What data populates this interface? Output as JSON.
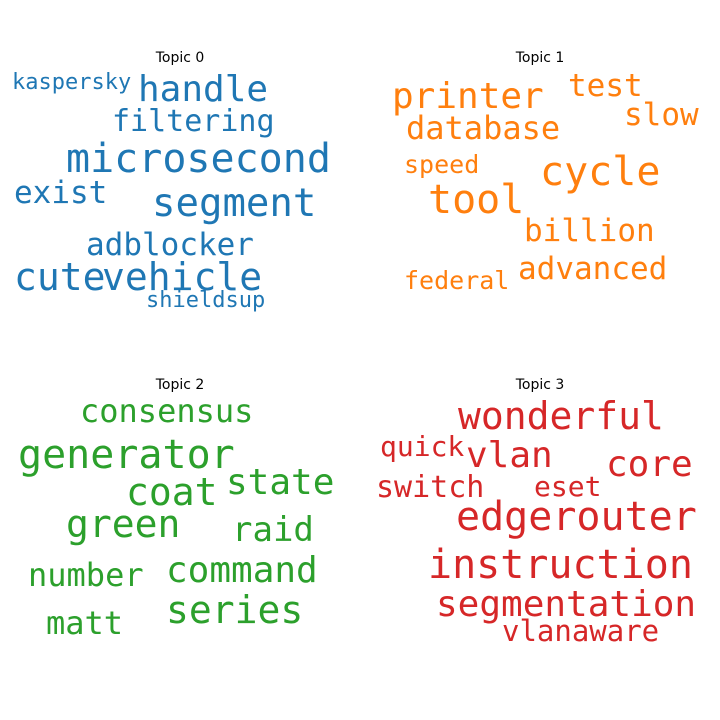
{
  "chart_data": {
    "type": "word-cloud",
    "panels": [
      {
        "title": "Topic 0",
        "color": "#1f77b4",
        "words": [
          {
            "text": "kaspersky"
          },
          {
            "text": "handle"
          },
          {
            "text": "filtering"
          },
          {
            "text": "microsecond"
          },
          {
            "text": "exist"
          },
          {
            "text": "segment"
          },
          {
            "text": "adblocker"
          },
          {
            "text": "cute"
          },
          {
            "text": "vehicle"
          },
          {
            "text": "shieldsup"
          }
        ]
      },
      {
        "title": "Topic 1",
        "color": "#ff7f0e",
        "words": [
          {
            "text": "printer"
          },
          {
            "text": "test"
          },
          {
            "text": "database"
          },
          {
            "text": "slow"
          },
          {
            "text": "speed"
          },
          {
            "text": "cycle"
          },
          {
            "text": "tool"
          },
          {
            "text": "billion"
          },
          {
            "text": "advanced"
          },
          {
            "text": "federal"
          }
        ]
      },
      {
        "title": "Topic 2",
        "color": "#2ca02c",
        "words": [
          {
            "text": "consensus"
          },
          {
            "text": "generator"
          },
          {
            "text": "state"
          },
          {
            "text": "coat"
          },
          {
            "text": "green"
          },
          {
            "text": "raid"
          },
          {
            "text": "command"
          },
          {
            "text": "number"
          },
          {
            "text": "series"
          },
          {
            "text": "matt"
          }
        ]
      },
      {
        "title": "Topic 3",
        "color": "#d62728",
        "words": [
          {
            "text": "wonderful"
          },
          {
            "text": "quick"
          },
          {
            "text": "vlan"
          },
          {
            "text": "core"
          },
          {
            "text": "switch"
          },
          {
            "text": "eset"
          },
          {
            "text": "edgerouter"
          },
          {
            "text": "instruction"
          },
          {
            "text": "segmentation"
          },
          {
            "text": "vlanaware"
          }
        ]
      }
    ]
  }
}
